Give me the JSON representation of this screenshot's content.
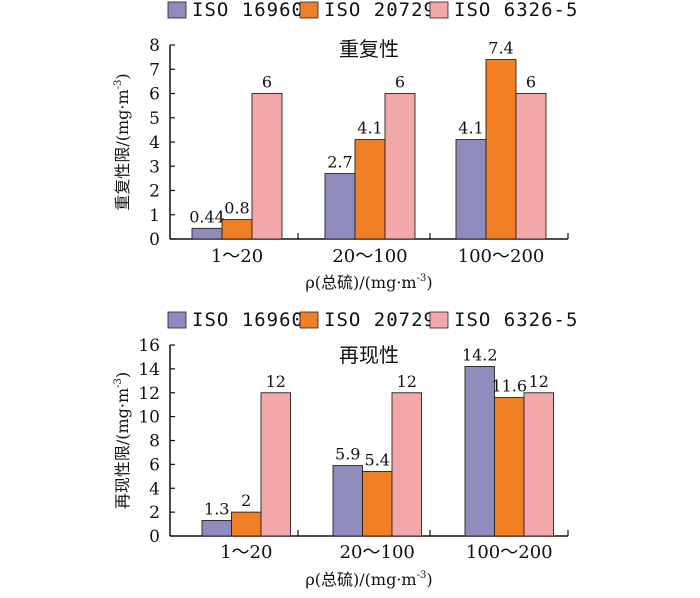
{
  "chart_data": [
    {
      "type": "bar",
      "title": "重复性",
      "legend": [
        "ISO 16960",
        "ISO 20729",
        "ISO 6326-5"
      ],
      "categories": [
        "1～20",
        "20～100",
        "100～200"
      ],
      "series": [
        {
          "name": "ISO 16960",
          "values": [
            0.44,
            2.7,
            4.1
          ],
          "labels": [
            "0.44",
            "2.7",
            "4.1"
          ]
        },
        {
          "name": "ISO 20729",
          "values": [
            0.8,
            4.1,
            7.4
          ],
          "labels": [
            "0.8",
            "4.1",
            "7.4"
          ]
        },
        {
          "name": "ISO 6326-5",
          "values": [
            6,
            6,
            6
          ],
          "labels": [
            "6",
            "6",
            "6"
          ]
        }
      ],
      "ylabel": "重复性限/(mg·m",
      "ylabel_sup": "-3",
      "ylabel_close": ")",
      "xlabel": "ρ(总硫)/(mg·m",
      "xlabel_sup": "-3",
      "xlabel_close": ")",
      "yticks": [
        "0",
        "1",
        "2",
        "3",
        "4",
        "5",
        "6",
        "7",
        "8"
      ],
      "ylim": [
        0,
        8
      ],
      "grid": false,
      "legend_position": "top"
    },
    {
      "type": "bar",
      "title": "再现性",
      "legend": [
        "ISO 16960",
        "ISO 20729",
        "ISO 6326-5"
      ],
      "categories": [
        "1～20",
        "20～100",
        "100～200"
      ],
      "series": [
        {
          "name": "ISO 16960",
          "values": [
            1.3,
            5.9,
            14.2
          ],
          "labels": [
            "1.3",
            "5.9",
            "14.2"
          ]
        },
        {
          "name": "ISO 20729",
          "values": [
            2,
            5.4,
            11.6
          ],
          "labels": [
            "2",
            "5.4",
            "11.6"
          ]
        },
        {
          "name": "ISO 6326-5",
          "values": [
            12,
            12,
            12
          ],
          "labels": [
            "12",
            "12",
            "12"
          ]
        }
      ],
      "ylabel": "再现性限/(mg·m",
      "ylabel_sup": "-3",
      "ylabel_close": ")",
      "xlabel": "ρ(总硫)/(mg·m",
      "xlabel_sup": "-3",
      "xlabel_close": ")",
      "yticks": [
        "0",
        "2",
        "4",
        "6",
        "8",
        "10",
        "12",
        "14",
        "16"
      ],
      "ylim": [
        0,
        16
      ],
      "grid": false,
      "legend_position": "top"
    }
  ],
  "colors": {
    "ISO 16960": "#8f8bbd",
    "ISO 20729": "#f07f26",
    "ISO 6326-5": "#f2a8a8",
    "axis": "#111111"
  }
}
